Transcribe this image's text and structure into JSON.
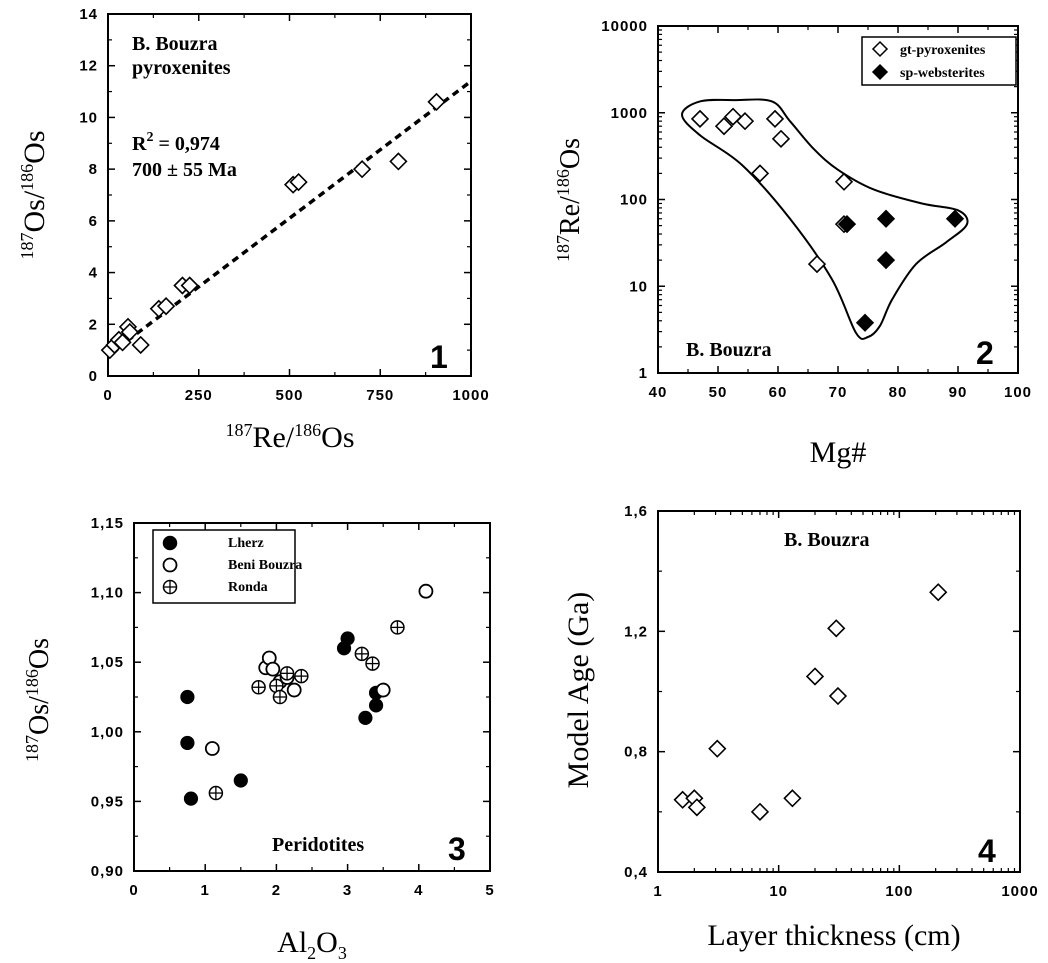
{
  "chart_data": [
    {
      "type": "scatter",
      "panel": "1",
      "xlabel": "187Re/186Os",
      "ylabel": "187Os/186Os",
      "xlim": [
        0,
        1000
      ],
      "ylim": [
        0,
        14
      ],
      "xticks": [
        0,
        250,
        500,
        750,
        1000
      ],
      "yticks": [
        0,
        2,
        4,
        6,
        8,
        10,
        12,
        14
      ],
      "xtick_labels": [
        "0",
        "250",
        "500",
        "750",
        "1000"
      ],
      "ytick_labels": [
        "0",
        "2",
        "4",
        "6",
        "8",
        "10",
        "12",
        "14"
      ],
      "annotations": [
        "B. Bouzra",
        "pyroxenites",
        "R2 = 0,974",
        "700 ± 55 Ma"
      ],
      "series": [
        {
          "marker": "open-diamond",
          "x": [
            5,
            18,
            30,
            40,
            55,
            60,
            90,
            140,
            160,
            205,
            225,
            510,
            525,
            700,
            800,
            905
          ],
          "y": [
            1.0,
            1.2,
            1.4,
            1.3,
            1.9,
            1.7,
            1.2,
            2.6,
            2.7,
            3.5,
            3.5,
            7.4,
            7.5,
            8.0,
            8.3,
            10.6
          ]
        }
      ],
      "fit_line": {
        "x": [
          0,
          1000
        ],
        "y": [
          0.8,
          11.4
        ]
      }
    },
    {
      "type": "scatter",
      "panel": "2",
      "xlabel": "Mg#",
      "ylabel": "187Re/186Os",
      "xlim": [
        40,
        100
      ],
      "ylim": [
        1,
        10000
      ],
      "yscale": "log",
      "xticks": [
        40,
        50,
        60,
        70,
        80,
        90,
        100
      ],
      "yticks": [
        1,
        10,
        100,
        1000,
        10000
      ],
      "xtick_labels": [
        "40",
        "50",
        "60",
        "70",
        "80",
        "90",
        "100"
      ],
      "ytick_labels": [
        "1",
        "10",
        "100",
        "1000",
        "10000"
      ],
      "legend": {
        "placement": "top-right",
        "entries": [
          "gt-pyroxenites",
          "sp-websterites"
        ]
      },
      "annotations": [
        "B. Bouzra"
      ],
      "series": [
        {
          "name": "gt-pyroxenites",
          "marker": "open-diamond",
          "x": [
            47,
            51,
            52.5,
            54.5,
            57,
            59.5,
            60.5,
            66.5,
            71,
            71
          ],
          "y": [
            850,
            700,
            900,
            800,
            200,
            850,
            500,
            18,
            160,
            52
          ]
        },
        {
          "name": "sp-websterites",
          "marker": "filled-diamond",
          "x": [
            71.5,
            74.5,
            78,
            78,
            89.5
          ],
          "y": [
            52,
            3.8,
            60,
            20,
            60
          ]
        }
      ],
      "envelope": {
        "x": [
          44,
          47,
          53,
          59,
          62,
          66,
          70,
          76,
          84,
          90,
          91.5,
          88,
          83,
          79,
          77,
          75,
          73,
          69,
          62,
          54,
          47,
          44
        ],
        "y": [
          950,
          1350,
          1400,
          1350,
          800,
          380,
          220,
          130,
          90,
          75,
          52,
          32,
          18,
          7,
          3.5,
          2.6,
          2.9,
          12,
          60,
          250,
          550,
          950
        ]
      }
    },
    {
      "type": "scatter",
      "panel": "3",
      "xlabel": "Al2O3",
      "ylabel": "187Os/186Os",
      "xlim": [
        0,
        5
      ],
      "ylim": [
        0.9,
        1.15
      ],
      "xticks": [
        0,
        1,
        2,
        3,
        4,
        5
      ],
      "yticks": [
        0.9,
        0.95,
        1.0,
        1.05,
        1.1,
        1.15
      ],
      "xtick_labels": [
        "0",
        "1",
        "2",
        "3",
        "4",
        "5"
      ],
      "ytick_labels": [
        "0,90",
        "0,95",
        "1,00",
        "1,05",
        "1,10",
        "1,15"
      ],
      "legend": {
        "placement": "top-left",
        "entries": [
          "Lherz",
          "Beni Bouzra",
          "Ronda"
        ]
      },
      "annotations": [
        "Peridotites"
      ],
      "series": [
        {
          "name": "Lherz",
          "marker": "filled-circle",
          "x": [
            0.75,
            0.75,
            0.8,
            1.5,
            2.95,
            3.0,
            3.25,
            3.4,
            3.4
          ],
          "y": [
            1.025,
            0.992,
            0.952,
            0.965,
            1.06,
            1.067,
            1.01,
            1.028,
            1.019
          ]
        },
        {
          "name": "Beni Bouzra",
          "marker": "open-circle",
          "x": [
            1.1,
            1.85,
            1.9,
            1.95,
            2.05,
            2.15,
            2.25,
            3.5,
            4.1
          ],
          "y": [
            0.988,
            1.046,
            1.053,
            1.045,
            1.036,
            1.039,
            1.03,
            1.03,
            1.101
          ]
        },
        {
          "name": "Ronda",
          "marker": "crossed-circle",
          "x": [
            1.15,
            1.75,
            2.0,
            2.05,
            2.15,
            2.35,
            3.2,
            3.35,
            3.7
          ],
          "y": [
            0.956,
            1.032,
            1.033,
            1.025,
            1.042,
            1.04,
            1.056,
            1.049,
            1.075
          ]
        }
      ]
    },
    {
      "type": "scatter",
      "panel": "4",
      "xlabel": "Layer thickness (cm)",
      "ylabel": "Model Age (Ga)",
      "xlim": [
        1,
        1000
      ],
      "ylim": [
        0.4,
        1.6
      ],
      "xscale": "log",
      "xticks": [
        1,
        10,
        100,
        1000
      ],
      "yticks": [
        0.4,
        0.8,
        1.2,
        1.6
      ],
      "xtick_labels": [
        "1",
        "10",
        "100",
        "1000"
      ],
      "ytick_labels": [
        "0,4",
        "0,8",
        "1,2",
        "1,6"
      ],
      "annotations": [
        "B. Bouzra"
      ],
      "series": [
        {
          "marker": "open-diamond",
          "x": [
            1.6,
            2.0,
            2.1,
            3.1,
            7.0,
            13,
            20,
            30,
            31,
            210
          ],
          "y": [
            0.64,
            0.645,
            0.615,
            0.81,
            0.6,
            0.645,
            1.05,
            1.21,
            0.985,
            1.33
          ]
        }
      ]
    }
  ],
  "panel_labels": [
    "1",
    "2",
    "3",
    "4"
  ]
}
